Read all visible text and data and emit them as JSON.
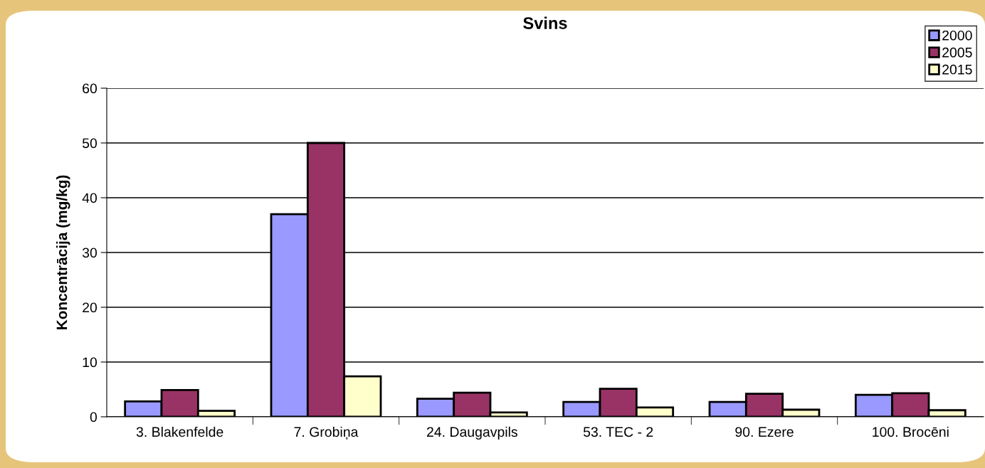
{
  "chart_data": {
    "type": "bar",
    "title": "Svins",
    "ylabel": "Koncentrācija (mg/kg)",
    "categories": [
      "3. Blakenfelde",
      "7. Grobiņa",
      "24. Daugavpils",
      "53. TEC - 2",
      "90. Ezere",
      "100. Brocēni"
    ],
    "series": [
      {
        "name": "2000",
        "color": "#9999ff",
        "values": [
          2.8,
          37,
          3.3,
          2.7,
          2.7,
          4.0
        ]
      },
      {
        "name": "2005",
        "color": "#993366",
        "values": [
          4.9,
          50,
          4.4,
          5.1,
          4.2,
          4.3
        ]
      },
      {
        "name": "2015",
        "color": "#ffffcc",
        "values": [
          1.1,
          7.4,
          0.8,
          1.7,
          1.3,
          1.2
        ]
      }
    ],
    "ylim": [
      0,
      60
    ],
    "yticks": [
      0,
      10,
      20,
      30,
      40,
      50,
      60
    ],
    "grid": "y",
    "legend": "top right"
  }
}
